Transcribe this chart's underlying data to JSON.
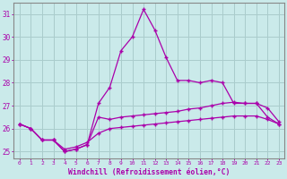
{
  "xlabel": "Windchill (Refroidissement éolien,°C)",
  "background_color": "#caeaea",
  "grid_color": "#aacccc",
  "line_color": "#aa00aa",
  "hours": [
    0,
    1,
    2,
    3,
    4,
    5,
    6,
    7,
    8,
    9,
    10,
    11,
    12,
    13,
    14,
    15,
    16,
    17,
    18,
    19,
    20,
    21,
    22,
    23
  ],
  "line_peak": [
    26.2,
    26.0,
    25.5,
    25.5,
    25.0,
    25.1,
    25.3,
    27.1,
    27.8,
    29.4,
    30.0,
    31.2,
    30.3,
    29.1,
    28.1,
    28.1,
    28.0,
    28.1,
    28.0,
    27.1,
    27.1,
    27.1,
    26.5,
    26.2
  ],
  "line_upper": [
    26.2,
    26.0,
    25.5,
    25.5,
    25.0,
    25.1,
    25.3,
    26.5,
    26.4,
    26.5,
    26.55,
    26.6,
    26.65,
    26.7,
    26.75,
    26.85,
    26.9,
    27.0,
    27.1,
    27.15,
    27.1,
    27.1,
    26.9,
    26.3
  ],
  "line_lower": [
    26.2,
    26.0,
    25.5,
    25.5,
    25.1,
    25.2,
    25.4,
    25.8,
    26.0,
    26.05,
    26.1,
    26.15,
    26.2,
    26.25,
    26.3,
    26.35,
    26.4,
    26.45,
    26.5,
    26.55,
    26.55,
    26.55,
    26.4,
    26.2
  ],
  "ylim": [
    24.7,
    31.5
  ],
  "yticks": [
    25,
    26,
    27,
    28,
    29,
    30,
    31
  ]
}
